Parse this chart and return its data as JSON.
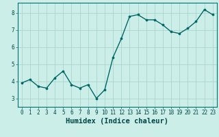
{
  "x": [
    0,
    1,
    2,
    3,
    4,
    5,
    6,
    7,
    8,
    9,
    10,
    11,
    12,
    13,
    14,
    15,
    16,
    17,
    18,
    19,
    20,
    21,
    22,
    23
  ],
  "y": [
    3.9,
    4.1,
    3.7,
    3.6,
    4.2,
    4.6,
    3.8,
    3.6,
    3.8,
    3.0,
    3.5,
    5.4,
    6.5,
    7.8,
    7.9,
    7.6,
    7.6,
    7.3,
    6.9,
    6.8,
    7.1,
    7.5,
    8.2,
    7.9
  ],
  "line_color": "#006666",
  "marker_color": "#006666",
  "bg_color": "#cceee8",
  "grid_color": "#aad4cc",
  "xlabel": "Humidex (Indice chaleur)",
  "xlim": [
    -0.5,
    23.5
  ],
  "ylim": [
    2.5,
    8.6
  ],
  "yticks": [
    3,
    4,
    5,
    6,
    7,
    8
  ],
  "xticks": [
    0,
    1,
    2,
    3,
    4,
    5,
    6,
    7,
    8,
    9,
    10,
    11,
    12,
    13,
    14,
    15,
    16,
    17,
    18,
    19,
    20,
    21,
    22,
    23
  ],
  "tick_fontsize": 5.5,
  "xlabel_fontsize": 7.5,
  "linewidth": 1.0,
  "markersize": 2.2
}
